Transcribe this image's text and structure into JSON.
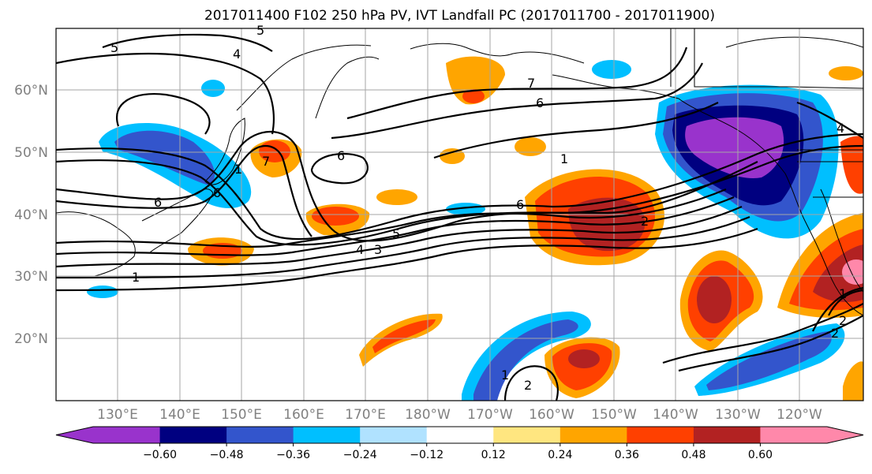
{
  "title": "2017011400 F102 250 hPa PV, IVT Landfall PC (2017011700 - 2017011900)",
  "latitudes": [
    "60°N",
    "50°N",
    "40°N",
    "30°N",
    "20°N"
  ],
  "longitudes": [
    "130°E",
    "140°E",
    "150°E",
    "160°E",
    "170°E",
    "180°W",
    "170°W",
    "160°W",
    "150°W",
    "140°W",
    "130°W",
    "120°W"
  ],
  "colorbar": {
    "colors": [
      "#9933cc",
      "#000080",
      "#3355cc",
      "#00bfff",
      "#b0e2ff",
      "#ffffff",
      "#ffe680",
      "#ffa500",
      "#ff4000",
      "#b22222",
      "#ff88aa"
    ],
    "ticks": [
      "−0.60",
      "−0.48",
      "−0.36",
      "−0.24",
      "−0.12",
      "0.12",
      "0.24",
      "0.36",
      "0.48",
      "0.60"
    ]
  },
  "contour_labels": [
    "5",
    "4",
    "5",
    "6",
    "6",
    "1",
    "6",
    "7",
    "6",
    "7",
    "1",
    "4",
    "6",
    "5",
    "4",
    "3",
    "2",
    "1",
    "1",
    "2",
    "2",
    "1",
    "2"
  ]
}
